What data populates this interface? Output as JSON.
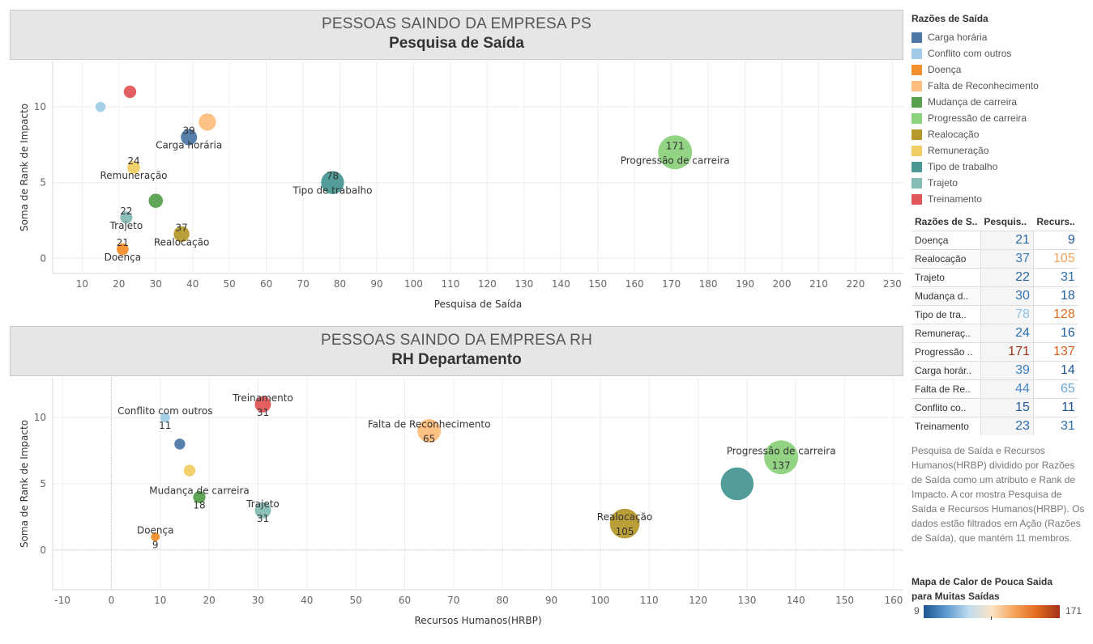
{
  "top_panel": {
    "title": "PESSOAS SAINDO DA EMPRESA PS",
    "subtitle": "Pesquisa de Saída"
  },
  "bottom_panel": {
    "title": "PESSOAS SAINDO DA EMPRESA RH",
    "subtitle": "RH Departamento"
  },
  "legend": {
    "title": "Razões de Saída",
    "items": [
      {
        "label": "Carga horária",
        "color": "#4e79a7"
      },
      {
        "label": "Conflito com outros",
        "color": "#a0cbe8"
      },
      {
        "label": "Doença",
        "color": "#f28e2b"
      },
      {
        "label": "Falta de Reconhecimento",
        "color": "#ffbe7d"
      },
      {
        "label": "Mudança de carreira",
        "color": "#59a14f"
      },
      {
        "label": "Progressão de carreira",
        "color": "#8cd17d"
      },
      {
        "label": "Realocação",
        "color": "#b6992d"
      },
      {
        "label": "Remuneração",
        "color": "#f1ce63"
      },
      {
        "label": "Tipo de trabalho",
        "color": "#499894"
      },
      {
        "label": "Trajeto",
        "color": "#86bcb6"
      },
      {
        "label": "Treinamento",
        "color": "#e15759"
      }
    ]
  },
  "table": {
    "headers": [
      "Razões de S..",
      "Pesquis..",
      "Recurs.."
    ],
    "rows": [
      {
        "name": "Doença",
        "ps": "21",
        "rh": "9",
        "ps_color": "#2c6aa8",
        "rh_color": "#1f5591"
      },
      {
        "name": "Realocação",
        "ps": "37",
        "rh": "105",
        "ps_color": "#3b7bbd",
        "rh_color": "#f5a35a"
      },
      {
        "name": "Trajeto",
        "ps": "22",
        "rh": "31",
        "ps_color": "#2c6aa8",
        "rh_color": "#2f6fae"
      },
      {
        "name": "Mudança d..",
        "ps": "30",
        "rh": "18",
        "ps_color": "#3574b4",
        "rh_color": "#245e9d"
      },
      {
        "name": "Tipo de tra..",
        "ps": "78",
        "rh": "128",
        "ps_color": "#8fc2e6",
        "rh_color": "#e06a1e"
      },
      {
        "name": "Remuneraç..",
        "ps": "24",
        "rh": "16",
        "ps_color": "#2f6fae",
        "rh_color": "#235c9a"
      },
      {
        "name": "Progressão ..",
        "ps": "171",
        "rh": "137",
        "ps_color": "#a0321a",
        "rh_color": "#d85f1a"
      },
      {
        "name": "Carga horár..",
        "ps": "39",
        "rh": "14",
        "ps_color": "#3d7fc0",
        "rh_color": "#215996"
      },
      {
        "name": "Falta de Re..",
        "ps": "44",
        "rh": "65",
        "ps_color": "#4889c7",
        "rh_color": "#6aa7d8"
      },
      {
        "name": "Conflito co..",
        "ps": "15",
        "rh": "11",
        "ps_color": "#245e9d",
        "rh_color": "#1f5591"
      },
      {
        "name": "Treinamento",
        "ps": "23",
        "rh": "31",
        "ps_color": "#2c6aa8",
        "rh_color": "#2f6fae"
      }
    ]
  },
  "caption": "Pesquisa de Saída e Recursos Humanos(HRBP) dividido por Razões de Saída como um atributo e Rank de Impacto.  A cor mostra Pesquisa de Saída e Recursos Humanos(HRBP). Os dados estão filtrados em Ação (Razões de Saída), que mantém 11 membros.",
  "colormap": {
    "title": "Mapa de Calor de Pouca Saida para Muitas Saídas",
    "min": "9",
    "max": "171"
  },
  "chart_data": [
    {
      "type": "scatter",
      "xlabel": "Pesquisa de Saída",
      "ylabel": "Soma de Rank de Impacto",
      "xlim": [
        2,
        233
      ],
      "ylim": [
        -1,
        13
      ],
      "xticks": [
        10,
        20,
        30,
        40,
        50,
        60,
        70,
        80,
        90,
        100,
        110,
        120,
        130,
        140,
        150,
        160,
        170,
        180,
        190,
        200,
        210,
        220,
        230
      ],
      "yticks": [
        0,
        5,
        10
      ],
      "points": [
        {
          "name": "Carga horária",
          "x": 39,
          "y": 8,
          "color": "#4e79a7",
          "value_label": "39",
          "name_label": "Carga horária"
        },
        {
          "name": "Conflito com outros",
          "x": 15,
          "y": 10,
          "color": "#a0cbe8",
          "value_label": "",
          "name_label": ""
        },
        {
          "name": "Doença",
          "x": 21,
          "y": 0.6,
          "color": "#f28e2b",
          "value_label": "21",
          "name_label": "Doença"
        },
        {
          "name": "Falta de Reconhecimento",
          "x": 44,
          "y": 9,
          "color": "#ffbe7d",
          "value_label": "",
          "name_label": ""
        },
        {
          "name": "Mudança de carreira",
          "x": 30,
          "y": 3.8,
          "color": "#59a14f",
          "value_label": "",
          "name_label": ""
        },
        {
          "name": "Progressão de carreira",
          "x": 171,
          "y": 7,
          "color": "#8cd17d",
          "value_label": "171",
          "name_label": "Progressão de carreira"
        },
        {
          "name": "Realocação",
          "x": 37,
          "y": 1.6,
          "color": "#b6992d",
          "value_label": "37",
          "name_label": "Realocação"
        },
        {
          "name": "Remuneração",
          "x": 24,
          "y": 6,
          "color": "#f1ce63",
          "value_label": "24",
          "name_label": "Remuneração"
        },
        {
          "name": "Tipo de trabalho",
          "x": 78,
          "y": 5,
          "color": "#499894",
          "value_label": "78",
          "name_label": "Tipo de trabalho"
        },
        {
          "name": "Trajeto",
          "x": 22,
          "y": 2.7,
          "color": "#86bcb6",
          "value_label": "22",
          "name_label": "Trajeto"
        },
        {
          "name": "Treinamento",
          "x": 23,
          "y": 11,
          "color": "#e15759",
          "value_label": "",
          "name_label": ""
        }
      ]
    },
    {
      "type": "scatter",
      "xlabel": "Recursos Humanos(HRBP)",
      "ylabel": "Soma de Rank de Impacto",
      "xlim": [
        -12,
        162
      ],
      "ylim": [
        -3,
        13
      ],
      "xticks": [
        -10,
        0,
        10,
        20,
        30,
        40,
        50,
        60,
        70,
        80,
        90,
        100,
        110,
        120,
        130,
        140,
        150,
        160
      ],
      "yticks": [
        0,
        5,
        10
      ],
      "points": [
        {
          "name": "Carga horária",
          "x": 14,
          "y": 8,
          "color": "#4e79a7",
          "value_label": "",
          "name_label": ""
        },
        {
          "name": "Conflito com outros",
          "x": 11,
          "y": 10,
          "color": "#a0cbe8",
          "value_label": "11",
          "name_label": "Conflito com outros"
        },
        {
          "name": "Doença",
          "x": 9,
          "y": 1,
          "color": "#f28e2b",
          "value_label": "9",
          "name_label": "Doença"
        },
        {
          "name": "Falta de Reconhecimento",
          "x": 65,
          "y": 9,
          "color": "#ffbe7d",
          "value_label": "65",
          "name_label": "Falta de Reconhecimento"
        },
        {
          "name": "Mudança de carreira",
          "x": 18,
          "y": 4,
          "color": "#59a14f",
          "value_label": "18",
          "name_label": "Mudança de carreira"
        },
        {
          "name": "Progressão de carreira",
          "x": 137,
          "y": 7,
          "color": "#8cd17d",
          "value_label": "137",
          "name_label": "Progressão de carreira"
        },
        {
          "name": "Realocação",
          "x": 105,
          "y": 2,
          "color": "#b6992d",
          "value_label": "105",
          "name_label": "Realocação"
        },
        {
          "name": "Remuneração",
          "x": 16,
          "y": 6,
          "color": "#f1ce63",
          "value_label": "",
          "name_label": ""
        },
        {
          "name": "Tipo de trabalho",
          "x": 128,
          "y": 5,
          "color": "#499894",
          "value_label": "",
          "name_label": ""
        },
        {
          "name": "Trajeto",
          "x": 31,
          "y": 3,
          "color": "#86bcb6",
          "value_label": "31",
          "name_label": "Trajeto"
        },
        {
          "name": "Treinamento",
          "x": 31,
          "y": 11,
          "color": "#e15759",
          "value_label": "31",
          "name_label": "Treinamento"
        }
      ]
    }
  ]
}
